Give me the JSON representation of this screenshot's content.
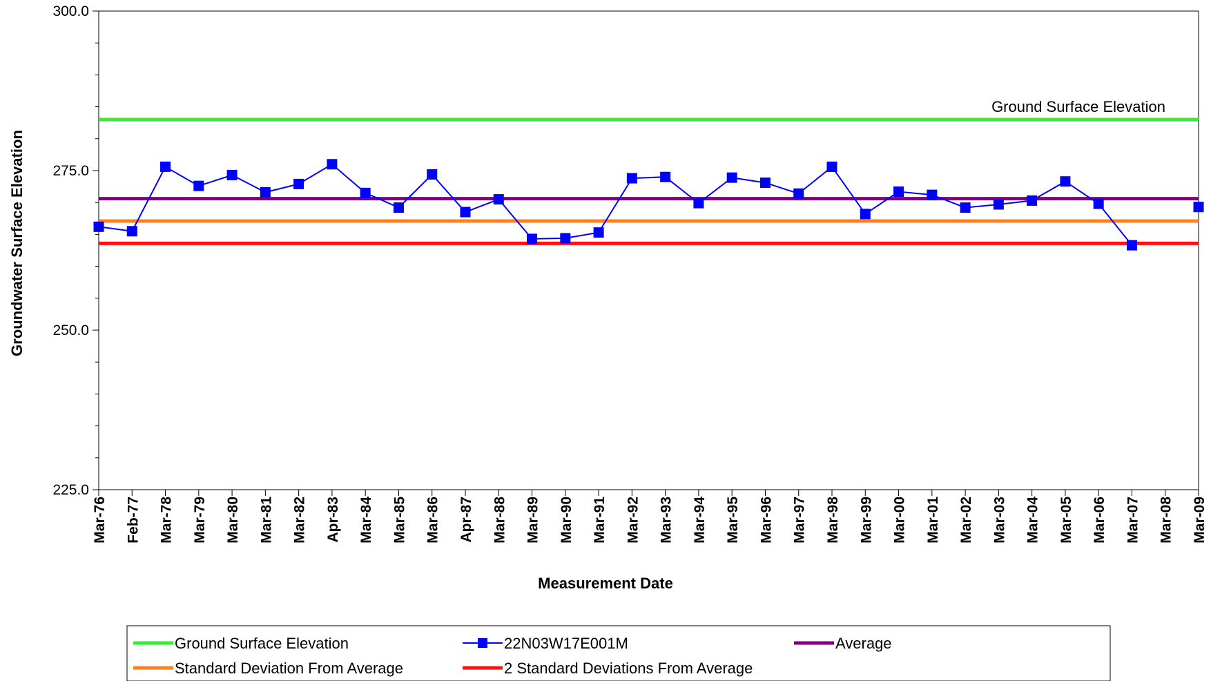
{
  "chart_data": {
    "type": "line",
    "xlabel": "Measurement Date",
    "ylabel": "Groundwater Surface Elevation",
    "ylim": [
      225.0,
      300.0
    ],
    "yticks": [
      "225.0",
      "250.0",
      "275.0",
      "300.0"
    ],
    "grid": false,
    "legend_position": "bottom",
    "categories": [
      "Mar-76",
      "Feb-77",
      "Mar-78",
      "Mar-79",
      "Mar-80",
      "Mar-81",
      "Mar-82",
      "Apr-83",
      "Mar-84",
      "Mar-85",
      "Mar-86",
      "Apr-87",
      "Mar-88",
      "Mar-89",
      "Mar-90",
      "Mar-91",
      "Mar-92",
      "Mar-93",
      "Mar-94",
      "Mar-95",
      "Mar-96",
      "Mar-97",
      "Mar-98",
      "Mar-99",
      "Mar-00",
      "Mar-01",
      "Mar-02",
      "Mar-03",
      "Mar-04",
      "Mar-05",
      "Mar-06",
      "Mar-07",
      "Mar-08",
      "Mar-09"
    ],
    "series": [
      {
        "name": "22N03W17E001M",
        "color": "#0000ff",
        "marker": "square",
        "values": [
          266.2,
          265.5,
          275.6,
          272.6,
          274.3,
          271.6,
          272.9,
          276.0,
          271.5,
          269.2,
          274.4,
          268.5,
          270.5,
          264.3,
          264.4,
          265.3,
          273.8,
          274.0,
          269.9,
          273.9,
          273.1,
          271.4,
          275.6,
          268.2,
          271.7,
          271.2,
          269.2,
          269.7,
          270.3,
          273.3,
          269.8,
          263.3,
          null,
          269.3
        ]
      }
    ],
    "reference_lines": [
      {
        "name": "Ground Surface Elevation",
        "value": 283.0,
        "color": "#33ee33"
      },
      {
        "name": "Average",
        "value": 270.6,
        "color": "#800080"
      },
      {
        "name": "Standard Deviation From Average",
        "value": 267.1,
        "color": "#ff7f1e"
      },
      {
        "name": "2 Standard Deviations From Average",
        "value": 263.6,
        "color": "#ff1111"
      }
    ],
    "annotations": [
      {
        "text": "Ground Surface Elevation"
      }
    ],
    "legend": [
      {
        "label": "Ground Surface Elevation",
        "color": "#33ee33",
        "marker": "none"
      },
      {
        "label": "22N03W17E001M",
        "color": "#0000ff",
        "marker": "square"
      },
      {
        "label": "Average",
        "color": "#800080",
        "marker": "none"
      },
      {
        "label": "Standard Deviation From Average",
        "color": "#ff7f1e",
        "marker": "none"
      },
      {
        "label": "2 Standard Deviations From Average",
        "color": "#ff1111",
        "marker": "none"
      }
    ]
  }
}
